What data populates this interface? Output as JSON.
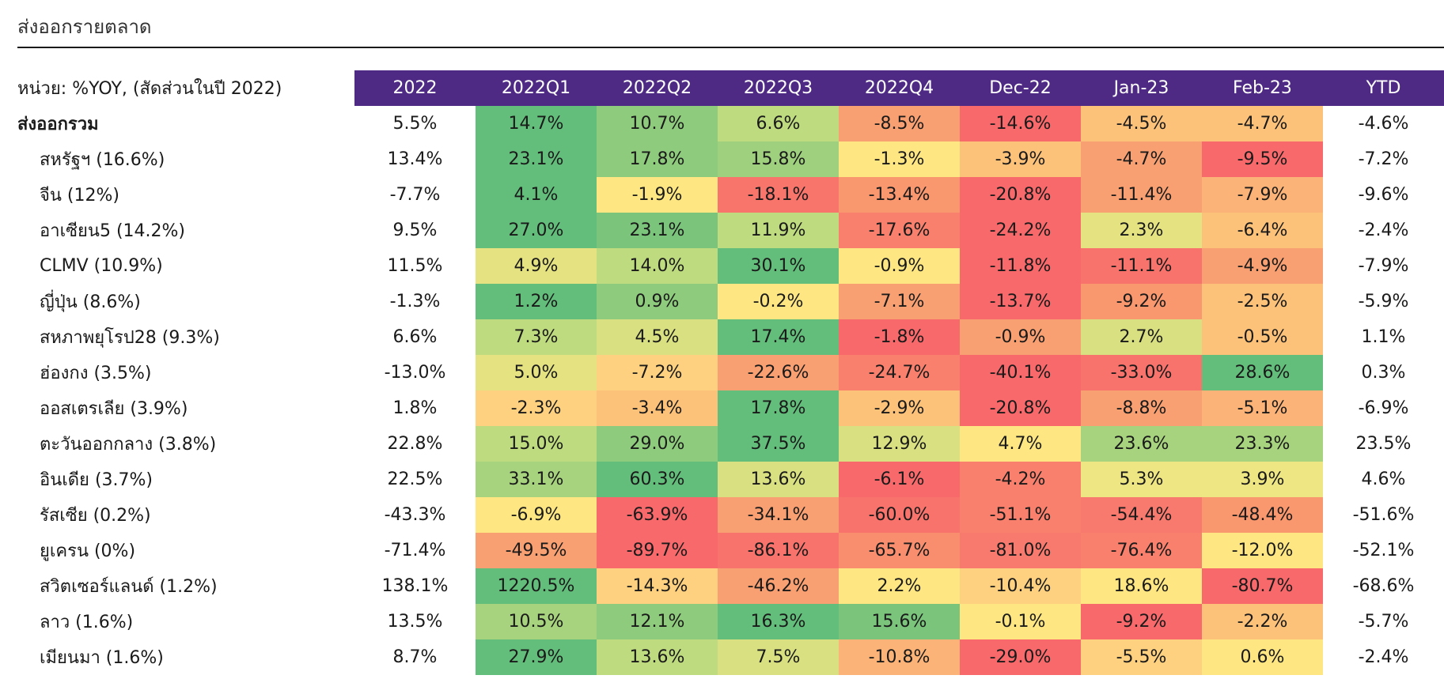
{
  "title": "ส่งออกรายตลาด",
  "unit_label": "หน่วย: %YOY, (สัดส่วนในปี 2022)",
  "columns": [
    "2022",
    "2022Q1",
    "2022Q2",
    "2022Q3",
    "2022Q4",
    "Dec-22",
    "Jan-23",
    "Feb-23",
    "YTD"
  ],
  "colors": {
    "header_bg": "#4e2a84",
    "green_dark": "#63be7b",
    "green_mid": "#8fcb7d",
    "green_light": "#bedb7f",
    "yellow": "#fee783",
    "orange_light": "#fcc27a",
    "orange": "#f9a072",
    "red_orange": "#f8806d",
    "red": "#f8696b"
  },
  "rows": [
    {
      "label": "ส่งออกรวม",
      "values": [
        "5.5%",
        "14.7%",
        "10.7%",
        "6.6%",
        "-8.5%",
        "-14.6%",
        "-4.5%",
        "-4.7%",
        "-4.6%"
      ],
      "colors": [
        "",
        "#63be7b",
        "#8fcb7d",
        "#bedb7f",
        "#f9a072",
        "#f8696b",
        "#fcc27a",
        "#fcc27a",
        ""
      ]
    },
    {
      "label": "สหรัฐฯ (16.6%)",
      "values": [
        "13.4%",
        "23.1%",
        "17.8%",
        "15.8%",
        "-1.3%",
        "-3.9%",
        "-4.7%",
        "-9.5%",
        "-7.2%"
      ],
      "colors": [
        "",
        "#63be7b",
        "#8fcb7d",
        "#9fd07e",
        "#fee783",
        "#fcc27a",
        "#f9a072",
        "#f8696b",
        ""
      ]
    },
    {
      "label": "จีน (12%)",
      "values": [
        "-7.7%",
        "4.1%",
        "-1.9%",
        "-18.1%",
        "-13.4%",
        "-20.8%",
        "-11.4%",
        "-7.9%",
        "-9.6%"
      ],
      "colors": [
        "",
        "#63be7b",
        "#fee783",
        "#f8756c",
        "#f9976f",
        "#f8696b",
        "#f9a072",
        "#fcb377",
        ""
      ]
    },
    {
      "label": "อาเซียน5 (14.2%)",
      "values": [
        "9.5%",
        "27.0%",
        "23.1%",
        "11.9%",
        "-17.6%",
        "-24.2%",
        "2.3%",
        "-6.4%",
        "-2.4%"
      ],
      "colors": [
        "",
        "#63be7b",
        "#7ac47c",
        "#bedb7f",
        "#f8806d",
        "#f8696b",
        "#e5e282",
        "#fcc27a",
        ""
      ]
    },
    {
      "label": "CLMV (10.9%)",
      "values": [
        "11.5%",
        "4.9%",
        "14.0%",
        "30.1%",
        "-0.9%",
        "-11.8%",
        "-11.1%",
        "-4.9%",
        "-7.9%"
      ],
      "colors": [
        "",
        "#e5e282",
        "#bedb7f",
        "#63be7b",
        "#fee783",
        "#f8696b",
        "#f8736c",
        "#f9a072",
        ""
      ]
    },
    {
      "label": "ญี่ปุ่น (8.6%)",
      "values": [
        "-1.3%",
        "1.2%",
        "0.9%",
        "-0.2%",
        "-7.1%",
        "-13.7%",
        "-9.2%",
        "-2.5%",
        "-5.9%"
      ],
      "colors": [
        "",
        "#63be7b",
        "#8fcb7d",
        "#fee783",
        "#f9a072",
        "#f8696b",
        "#f9976f",
        "#fcc27a",
        ""
      ]
    },
    {
      "label": "สหภาพยุโรป28 (9.3%)",
      "values": [
        "6.6%",
        "7.3%",
        "4.5%",
        "17.4%",
        "-1.8%",
        "-0.9%",
        "2.7%",
        "-0.5%",
        "1.1%"
      ],
      "colors": [
        "",
        "#bedb7f",
        "#d9e081",
        "#63be7b",
        "#f8696b",
        "#f9a072",
        "#d9e081",
        "#fcc27a",
        ""
      ]
    },
    {
      "label": "ฮ่องกง (3.5%)",
      "values": [
        "-13.0%",
        "5.0%",
        "-7.2%",
        "-22.6%",
        "-24.7%",
        "-40.1%",
        "-33.0%",
        "28.6%",
        "0.3%"
      ],
      "colors": [
        "",
        "#e5e282",
        "#fdd17f",
        "#f9a072",
        "#f8806d",
        "#f8696b",
        "#f8736c",
        "#63be7b",
        ""
      ]
    },
    {
      "label": "ออสเตรเลีย (3.9%)",
      "values": [
        "1.8%",
        "-2.3%",
        "-3.4%",
        "17.8%",
        "-2.9%",
        "-20.8%",
        "-8.8%",
        "-5.1%",
        "-6.9%"
      ],
      "colors": [
        "",
        "#fdd17f",
        "#fcc27a",
        "#63be7b",
        "#fcc27a",
        "#f8696b",
        "#f9a072",
        "#fcb377",
        ""
      ]
    },
    {
      "label": "ตะวันออกกลาง (3.8%)",
      "values": [
        "22.8%",
        "15.0%",
        "29.0%",
        "37.5%",
        "12.9%",
        "4.7%",
        "23.6%",
        "23.3%",
        "23.5%"
      ],
      "colors": [
        "",
        "#bedb7f",
        "#8fcb7d",
        "#63be7b",
        "#d9e081",
        "#fee783",
        "#a7d37e",
        "#a7d37e",
        ""
      ]
    },
    {
      "label": "อินเดีย (3.7%)",
      "values": [
        "22.5%",
        "33.1%",
        "60.3%",
        "13.6%",
        "-6.1%",
        "-4.2%",
        "5.3%",
        "3.9%",
        "4.6%"
      ],
      "colors": [
        "",
        "#a7d37e",
        "#63be7b",
        "#d9e081",
        "#f8696b",
        "#f8806d",
        "#eee583",
        "#eee583",
        ""
      ]
    },
    {
      "label": "รัสเซีย (0.2%)",
      "values": [
        "-43.3%",
        "-6.9%",
        "-63.9%",
        "-34.1%",
        "-60.0%",
        "-51.1%",
        "-54.4%",
        "-48.4%",
        "-51.6%"
      ],
      "colors": [
        "",
        "#fee783",
        "#f8696b",
        "#f9a072",
        "#f8736c",
        "#f8806d",
        "#f8796d",
        "#f9976f",
        ""
      ]
    },
    {
      "label": "ยูเครน (0%)",
      "values": [
        "-71.4%",
        "-49.5%",
        "-89.7%",
        "-86.1%",
        "-65.7%",
        "-81.0%",
        "-76.4%",
        "-12.0%",
        "-52.1%"
      ],
      "colors": [
        "",
        "#f9a072",
        "#f8696b",
        "#f8736c",
        "#f98e6f",
        "#f8796d",
        "#f8806d",
        "#fee783",
        ""
      ]
    },
    {
      "label": "สวิตเซอร์แลนด์ (1.2%)",
      "values": [
        "138.1%",
        "1220.5%",
        "-14.3%",
        "-46.2%",
        "2.2%",
        "-10.4%",
        "18.6%",
        "-80.7%",
        "-68.6%"
      ],
      "colors": [
        "",
        "#63be7b",
        "#fdd17f",
        "#f9a072",
        "#fee783",
        "#fdd17f",
        "#fee783",
        "#f8696b",
        ""
      ]
    },
    {
      "label": "ลาว (1.6%)",
      "values": [
        "13.5%",
        "10.5%",
        "12.1%",
        "16.3%",
        "15.6%",
        "-0.1%",
        "-9.2%",
        "-2.2%",
        "-5.7%"
      ],
      "colors": [
        "",
        "#a7d37e",
        "#8fcb7d",
        "#63be7b",
        "#7ac47c",
        "#fee783",
        "#f8696b",
        "#fcc27a",
        ""
      ]
    },
    {
      "label": "เมียนมา (1.6%)",
      "values": [
        "8.7%",
        "27.9%",
        "13.6%",
        "7.5%",
        "-10.8%",
        "-29.0%",
        "-5.5%",
        "0.6%",
        "-2.4%"
      ],
      "colors": [
        "",
        "#63be7b",
        "#bedb7f",
        "#d9e081",
        "#fcb377",
        "#f8696b",
        "#fdd17f",
        "#fee783",
        ""
      ]
    }
  ]
}
